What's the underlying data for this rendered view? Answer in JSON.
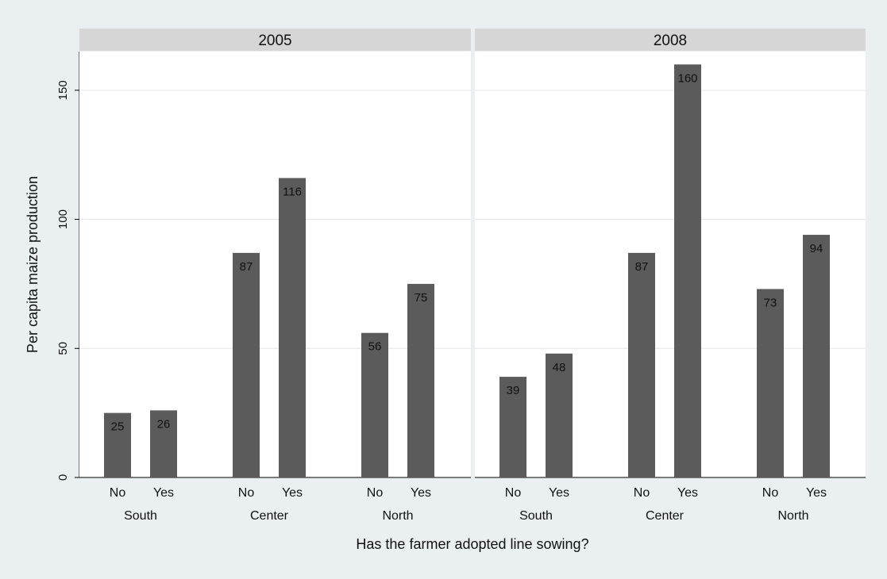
{
  "chart_data": {
    "type": "bar",
    "ylabel": "Per capita maize production",
    "xlabel": "Has the farmer adopted line sowing?",
    "ylim": [
      0,
      165
    ],
    "yticks": [
      0,
      50,
      100,
      150
    ],
    "grid": true,
    "groups": [
      "South",
      "Center",
      "North"
    ],
    "subcategories": [
      "No",
      "Yes"
    ],
    "panels": [
      {
        "title": "2005",
        "values": [
          [
            25,
            26
          ],
          [
            87,
            116
          ],
          [
            56,
            75
          ]
        ]
      },
      {
        "title": "2008",
        "values": [
          [
            39,
            48
          ],
          [
            87,
            160
          ],
          [
            73,
            94
          ]
        ]
      }
    ],
    "colors": {
      "bar": "#5b5b5b",
      "panel_header": "#d6d6d6",
      "plot_background": "#ffffff",
      "page_background": "#eaf0f2",
      "grid": "#e6e6e6"
    }
  }
}
